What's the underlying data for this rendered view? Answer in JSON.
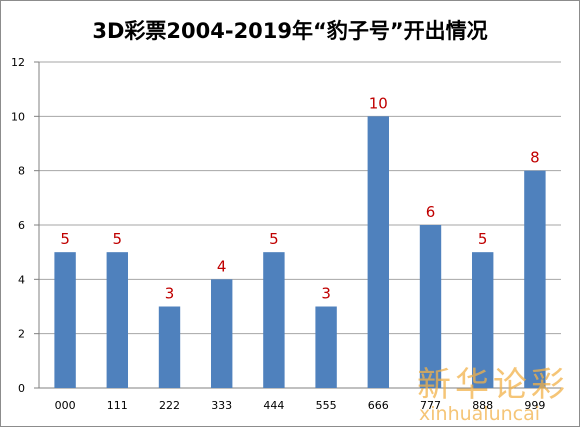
{
  "chart_data": {
    "type": "bar",
    "title": "3D彩票2004-2019年“豹子号”开出情况",
    "xlabel": "",
    "ylabel": "",
    "categories": [
      "000",
      "111",
      "222",
      "333",
      "444",
      "555",
      "666",
      "777",
      "888",
      "999"
    ],
    "values": [
      5,
      5,
      3,
      4,
      5,
      3,
      10,
      6,
      5,
      8
    ],
    "ylim": [
      0,
      12
    ],
    "yticks": [
      0,
      2,
      4,
      6,
      8,
      10,
      12
    ],
    "grid": true,
    "legend": "none",
    "data_labels": true,
    "colors": {
      "bar": "#4f81bd",
      "data_label": "#c00000",
      "grid": "#a6a6a6"
    }
  },
  "watermark": {
    "text_cn": "新华论彩",
    "text_pinyin": "xinhualuncai",
    "color": "#f1b24a"
  }
}
